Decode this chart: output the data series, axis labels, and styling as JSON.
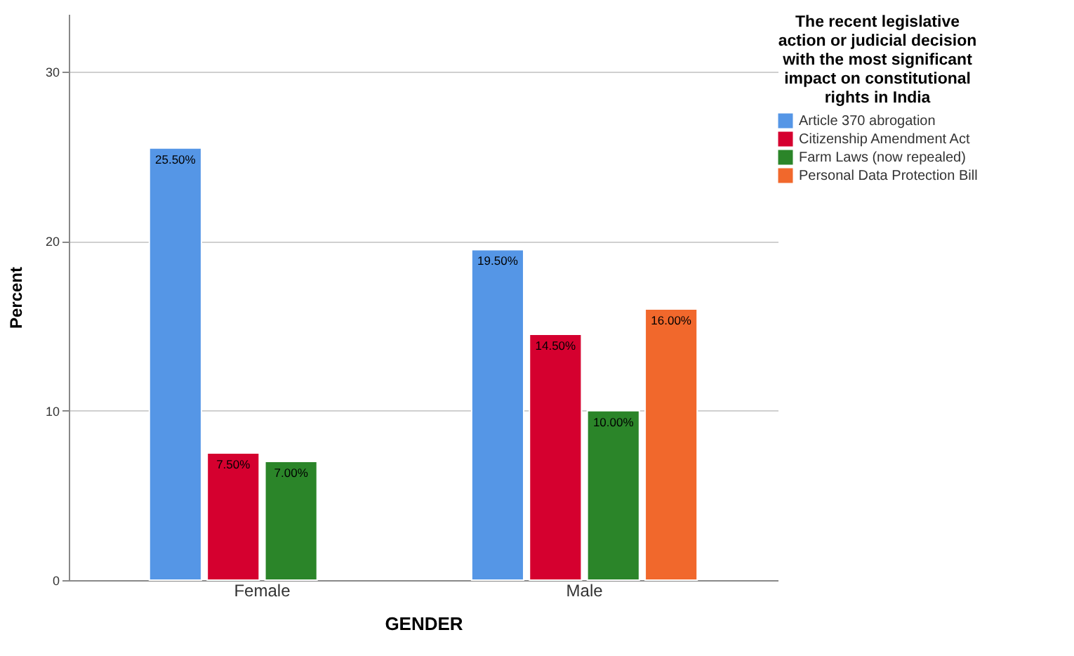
{
  "chart_data": {
    "type": "bar",
    "xlabel": "GENDER",
    "ylabel": "Percent",
    "legend_title": "The recent legislative action or judicial decision with the most significant impact on constitutional rights in India",
    "categories": [
      "Female",
      "Male"
    ],
    "series": [
      {
        "name": "Article 370 abrogation",
        "color": "#5596e6",
        "values": [
          25.5,
          19.5
        ],
        "value_labels": [
          "25.50%",
          "19.50%"
        ]
      },
      {
        "name": "Citizenship Amendment Act",
        "color": "#d5002f",
        "values": [
          7.5,
          14.5
        ],
        "value_labels": [
          "7.50%",
          "14.50%"
        ]
      },
      {
        "name": "Farm Laws (now repealed)",
        "color": "#2b8529",
        "values": [
          7.0,
          10.0
        ],
        "value_labels": [
          "7.00%",
          "10.00%"
        ]
      },
      {
        "name": "Personal Data Protection Bill",
        "color": "#f1682c",
        "values": [
          null,
          16.0
        ],
        "value_labels": [
          null,
          "16.00%"
        ]
      }
    ],
    "ylim": [
      0,
      33.4
    ],
    "yticks": [
      0,
      10,
      20,
      30
    ],
    "grid": "y",
    "legend": "top right"
  }
}
